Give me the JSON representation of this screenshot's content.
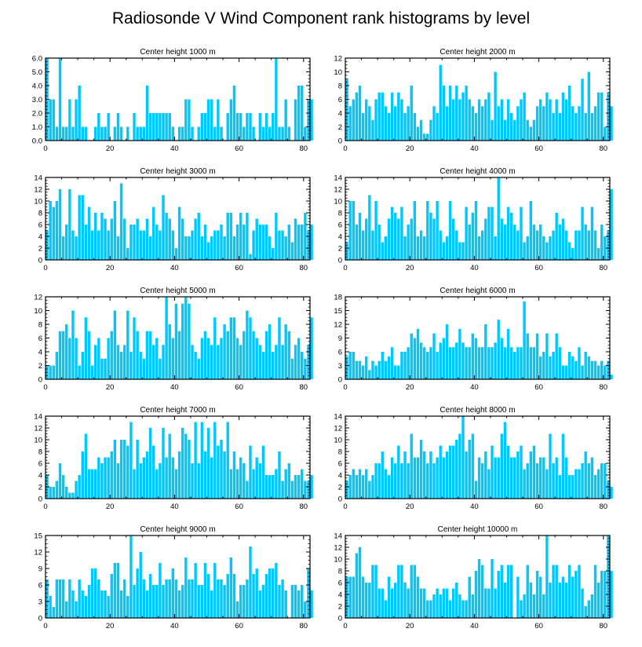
{
  "figure_title": "Radiosonde V Wind Component rank histograms by level",
  "colors": {
    "bar": "#00c8ff",
    "axis": "#000000",
    "background": "#ffffff"
  },
  "chart_data": [
    {
      "type": "bar",
      "title": "Center height 1000 m",
      "xlim": [
        0,
        82
      ],
      "ylim": [
        0,
        6
      ],
      "xticks": [
        "0",
        "20",
        "40",
        "60",
        "80"
      ],
      "yticks": [
        "0.0",
        "1.0",
        "2.0",
        "3.0",
        "4.0",
        "5.0",
        "6.0"
      ],
      "values": [
        6,
        3,
        3,
        1,
        6,
        1,
        1,
        3,
        1,
        3,
        4,
        1,
        1,
        0,
        0,
        1,
        2,
        1,
        1,
        2,
        0,
        1,
        2,
        1,
        0,
        1,
        0,
        2,
        1,
        1,
        1,
        4,
        2,
        2,
        2,
        2,
        2,
        2,
        2,
        1,
        0,
        1,
        1,
        3,
        3,
        1,
        0,
        1,
        2,
        2,
        3,
        3,
        1,
        3,
        1,
        0,
        2,
        3,
        4,
        2,
        2,
        1,
        2,
        2,
        1,
        0,
        2,
        1,
        2,
        1,
        2,
        6,
        1,
        1,
        3,
        1,
        0,
        3,
        4,
        4,
        1,
        3,
        3
      ]
    },
    {
      "type": "bar",
      "title": "Center height 2000 m",
      "xlim": [
        0,
        82
      ],
      "ylim": [
        0,
        12
      ],
      "xticks": [
        "0",
        "20",
        "40",
        "60",
        "80"
      ],
      "yticks": [
        "0",
        "2",
        "4",
        "6",
        "8",
        "10",
        "12"
      ],
      "values": [
        9,
        5,
        6,
        7,
        8,
        4,
        6,
        5,
        3,
        6,
        7,
        7,
        5,
        4,
        7,
        5,
        7,
        6,
        4,
        5,
        8,
        4,
        2,
        3,
        1,
        1,
        3,
        5,
        4,
        11,
        8,
        5,
        8,
        6,
        8,
        6,
        7,
        8,
        6,
        5,
        4,
        6,
        5,
        6,
        7,
        3,
        10,
        5,
        6,
        3,
        6,
        4,
        3,
        5,
        6,
        7,
        3,
        2,
        3,
        5,
        6,
        5,
        7,
        6,
        4,
        6,
        4,
        7,
        6,
        8,
        5,
        4,
        5,
        9,
        4,
        10,
        4,
        5,
        7,
        7,
        2,
        7,
        5
      ]
    },
    {
      "type": "bar",
      "title": "Center height 3000 m",
      "xlim": [
        0,
        82
      ],
      "ylim": [
        0,
        14
      ],
      "xticks": [
        "0",
        "20",
        "40",
        "60",
        "80"
      ],
      "yticks": [
        "0",
        "2",
        "4",
        "6",
        "8",
        "10",
        "12",
        "14"
      ],
      "values": [
        5,
        10,
        9,
        10,
        12,
        4,
        6,
        12,
        5,
        4,
        11,
        11,
        6,
        9,
        5,
        8,
        5,
        8,
        7,
        5,
        7,
        10,
        4,
        13,
        7,
        2,
        6,
        6,
        7,
        5,
        5,
        7,
        4,
        9,
        6,
        5,
        11,
        8,
        7,
        5,
        2,
        9,
        7,
        4,
        4,
        5,
        7,
        8,
        4,
        6,
        3,
        4,
        5,
        5,
        6,
        4,
        8,
        8,
        4,
        6,
        8,
        6,
        8,
        1,
        5,
        7,
        6,
        6,
        6,
        4,
        2,
        8,
        5,
        5,
        4,
        6,
        3,
        7,
        6,
        6,
        8,
        5,
        6
      ]
    },
    {
      "type": "bar",
      "title": "Center height 4000 m",
      "xlim": [
        0,
        82
      ],
      "ylim": [
        0,
        14
      ],
      "xticks": [
        "0",
        "20",
        "40",
        "60",
        "80"
      ],
      "yticks": [
        "0",
        "2",
        "4",
        "6",
        "8",
        "10",
        "12",
        "14"
      ],
      "values": [
        3,
        10,
        10,
        6,
        8,
        5,
        7,
        11,
        5,
        10,
        6,
        3,
        4,
        7,
        9,
        8,
        7,
        9,
        4,
        6,
        7,
        10,
        4,
        5,
        4,
        10,
        8,
        7,
        10,
        5,
        3,
        4,
        10,
        7,
        5,
        3,
        3,
        9,
        6,
        8,
        10,
        4,
        5,
        7,
        9,
        9,
        4,
        14,
        7,
        6,
        9,
        8,
        6,
        5,
        9,
        3,
        4,
        10,
        6,
        5,
        6,
        4,
        3,
        4,
        5,
        8,
        6,
        7,
        5,
        3,
        2,
        5,
        5,
        9,
        6,
        5,
        9,
        5,
        2,
        6,
        4,
        5,
        12
      ]
    },
    {
      "type": "bar",
      "title": "Center height 5000 m",
      "xlim": [
        0,
        82
      ],
      "ylim": [
        0,
        12
      ],
      "xticks": [
        "0",
        "20",
        "40",
        "60",
        "80"
      ],
      "yticks": [
        "0",
        "2",
        "4",
        "6",
        "8",
        "10",
        "12"
      ],
      "values": [
        2,
        2,
        2,
        4,
        7,
        7,
        8,
        6,
        10,
        6,
        2,
        4,
        9,
        7,
        2,
        5,
        6,
        3,
        3,
        6,
        7,
        10,
        5,
        4,
        5,
        10,
        4,
        9,
        7,
        4,
        3,
        7,
        7,
        5,
        6,
        3,
        5,
        12,
        8,
        6,
        11,
        7,
        11,
        12,
        11,
        5,
        4,
        3,
        6,
        7,
        6,
        5,
        9,
        5,
        6,
        8,
        7,
        9,
        9,
        6,
        5,
        7,
        10,
        9,
        7,
        6,
        5,
        4,
        7,
        8,
        4,
        5,
        9,
        5,
        8,
        7,
        3,
        5,
        6,
        4,
        3,
        5,
        9
      ]
    },
    {
      "type": "bar",
      "title": "Center height 6000 m",
      "xlim": [
        0,
        82
      ],
      "ylim": [
        0,
        18
      ],
      "xticks": [
        "0",
        "20",
        "40",
        "60",
        "80"
      ],
      "yticks": [
        "0",
        "3",
        "6",
        "9",
        "12",
        "15",
        "18"
      ],
      "values": [
        5,
        6,
        6,
        4,
        4,
        3,
        5,
        2,
        4,
        3,
        4,
        6,
        4,
        5,
        7,
        3,
        3,
        6,
        6,
        7,
        10,
        9,
        11,
        8,
        7,
        6,
        7,
        10,
        6,
        8,
        9,
        12,
        7,
        7,
        8,
        11,
        8,
        7,
        7,
        10,
        9,
        7,
        7,
        12,
        7,
        7,
        8,
        13,
        9,
        7,
        11,
        7,
        6,
        7,
        7,
        17,
        10,
        7,
        7,
        10,
        5,
        6,
        10,
        5,
        6,
        10,
        7,
        3,
        3,
        6,
        5,
        4,
        7,
        3,
        6,
        5,
        4,
        4,
        3,
        4,
        3,
        4,
        1
      ]
    },
    {
      "type": "bar",
      "title": "Center height 7000 m",
      "xlim": [
        0,
        82
      ],
      "ylim": [
        0,
        14
      ],
      "xticks": [
        "0",
        "20",
        "40",
        "60",
        "80"
      ],
      "yticks": [
        "0",
        "2",
        "4",
        "6",
        "8",
        "10",
        "12",
        "14"
      ],
      "values": [
        4,
        2,
        2,
        3,
        6,
        4,
        2,
        1,
        1,
        3,
        4,
        8,
        11,
        5,
        5,
        5,
        7,
        6,
        7,
        7,
        8,
        10,
        6,
        10,
        10,
        9,
        13,
        5,
        10,
        6,
        7,
        8,
        12,
        9,
        5,
        6,
        12,
        7,
        11,
        7,
        5,
        8,
        12,
        11,
        10,
        6,
        13,
        6,
        13,
        8,
        12,
        7,
        13,
        9,
        10,
        8,
        13,
        5,
        8,
        5,
        7,
        6,
        3,
        9,
        5,
        7,
        6,
        9,
        4,
        4,
        4,
        5,
        8,
        3,
        5,
        6,
        3,
        4,
        4,
        5,
        3,
        3,
        4
      ]
    },
    {
      "type": "bar",
      "title": "Center height 8000 m",
      "xlim": [
        0,
        82
      ],
      "ylim": [
        0,
        14
      ],
      "xticks": [
        "0",
        "20",
        "40",
        "60",
        "80"
      ],
      "yticks": [
        "0",
        "2",
        "4",
        "6",
        "8",
        "10",
        "12",
        "14"
      ],
      "values": [
        3,
        4,
        5,
        4,
        5,
        4,
        5,
        3,
        4,
        6,
        6,
        8,
        5,
        4,
        7,
        6,
        9,
        6,
        8,
        6,
        11,
        7,
        7,
        10,
        8,
        6,
        8,
        6,
        7,
        9,
        7,
        8,
        9,
        9,
        10,
        11,
        14,
        8,
        10,
        11,
        3,
        7,
        6,
        8,
        5,
        9,
        7,
        7,
        11,
        13,
        9,
        7,
        7,
        8,
        9,
        5,
        6,
        8,
        9,
        6,
        7,
        7,
        5,
        11,
        6,
        7,
        4,
        11,
        7,
        4,
        4,
        5,
        5,
        6,
        8,
        6,
        7,
        4,
        5,
        6,
        6,
        3,
        2
      ]
    },
    {
      "type": "bar",
      "title": "Center height 9000 m",
      "xlim": [
        0,
        82
      ],
      "ylim": [
        0,
        15
      ],
      "xticks": [
        "0",
        "20",
        "40",
        "60",
        "80"
      ],
      "yticks": [
        "0",
        "3",
        "6",
        "9",
        "12",
        "15"
      ],
      "values": [
        7,
        4,
        2,
        7,
        7,
        7,
        3,
        7,
        5,
        3,
        7,
        5,
        4,
        6,
        9,
        9,
        7,
        5,
        5,
        4,
        8,
        10,
        10,
        5,
        7,
        4,
        15,
        6,
        9,
        12,
        7,
        5,
        8,
        6,
        6,
        10,
        6,
        7,
        7,
        9,
        7,
        5,
        6,
        11,
        7,
        7,
        10,
        6,
        6,
        10,
        8,
        5,
        10,
        7,
        7,
        6,
        8,
        11,
        8,
        3,
        6,
        6,
        7,
        13,
        8,
        9,
        5,
        6,
        8,
        9,
        9,
        10,
        6,
        7,
        5,
        0,
        6,
        6,
        5,
        6,
        3,
        9,
        5
      ]
    },
    {
      "type": "bar",
      "title": "Center height 10000 m",
      "xlim": [
        0,
        82
      ],
      "ylim": [
        0,
        14
      ],
      "xticks": [
        "0",
        "20",
        "40",
        "60",
        "80"
      ],
      "yticks": [
        "0",
        "2",
        "4",
        "6",
        "8",
        "10",
        "12",
        "14"
      ],
      "values": [
        7,
        7,
        7,
        11,
        12,
        7,
        6,
        6,
        9,
        9,
        5,
        5,
        3,
        7,
        5,
        6,
        9,
        9,
        6,
        5,
        9,
        9,
        7,
        5,
        5,
        3,
        3,
        4,
        5,
        4,
        5,
        5,
        3,
        5,
        6,
        4,
        3,
        3,
        7,
        4,
        8,
        10,
        9,
        5,
        5,
        10,
        5,
        8,
        9,
        6,
        9,
        9,
        0,
        7,
        3,
        4,
        9,
        6,
        4,
        8,
        7,
        4,
        14,
        6,
        9,
        9,
        6,
        7,
        6,
        9,
        7,
        8,
        9,
        5,
        2,
        3,
        4,
        9,
        6,
        8,
        8,
        14,
        8
      ]
    }
  ]
}
